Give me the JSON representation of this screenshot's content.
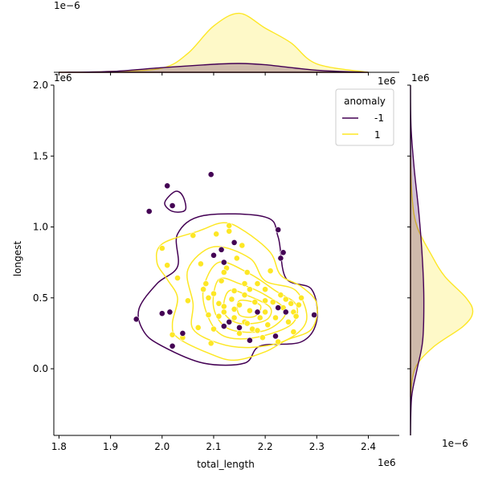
{
  "chart_data": {
    "type": "scatter",
    "subtype": "jointplot with kde contours and marginal kde",
    "xlabel": "total_length",
    "ylabel": "longest",
    "x_offset_label": "1e6",
    "y_offset_label": "1e6",
    "xlim": [
      1.79,
      2.46
    ],
    "ylim": [
      -0.47,
      2.0
    ],
    "x_ticks": [
      1.8,
      1.9,
      2.0,
      2.1,
      2.2,
      2.3,
      2.4
    ],
    "y_ticks": [
      0.0,
      0.5,
      1.0,
      1.5,
      2.0
    ],
    "x_tick_labels": [
      "1.8",
      "1.9",
      "2.0",
      "2.1",
      "2.2",
      "2.3",
      "2.4"
    ],
    "y_tick_labels": [
      "0.0",
      "0.5",
      "1.0",
      "1.5",
      "2.0"
    ],
    "top_marginal_offset_label": "1e−6",
    "top_marginal_right_label": "1e6",
    "right_marginal_top_label": "1e6",
    "right_marginal_offset_label": "1e−6",
    "grid": false,
    "legend": {
      "title": "anomaly",
      "placement": "upper right"
    },
    "series": [
      {
        "name": "-1",
        "color": "#440154",
        "points": [
          [
            1.95,
            0.35
          ],
          [
            1.975,
            1.11
          ],
          [
            2.0,
            0.39
          ],
          [
            2.02,
            1.15
          ],
          [
            2.01,
            1.29
          ],
          [
            2.015,
            0.4
          ],
          [
            2.02,
            0.16
          ],
          [
            2.04,
            0.25
          ],
          [
            2.095,
            1.37
          ],
          [
            2.1,
            0.8
          ],
          [
            2.115,
            0.84
          ],
          [
            2.12,
            0.75
          ],
          [
            2.13,
            0.33
          ],
          [
            2.14,
            0.89
          ],
          [
            2.15,
            0.29
          ],
          [
            2.17,
            0.2
          ],
          [
            2.185,
            0.4
          ],
          [
            2.22,
            0.23
          ],
          [
            2.225,
            0.98
          ],
          [
            2.225,
            0.43
          ],
          [
            2.23,
            0.78
          ],
          [
            2.235,
            0.82
          ],
          [
            2.24,
            0.4
          ],
          [
            2.295,
            0.38
          ],
          [
            2.12,
            0.3
          ]
        ]
      },
      {
        "name": "1",
        "color": "#fde725",
        "points": [
          [
            2.0,
            0.85
          ],
          [
            2.01,
            0.73
          ],
          [
            2.02,
            0.24
          ],
          [
            2.03,
            0.64
          ],
          [
            2.04,
            0.22
          ],
          [
            2.05,
            0.48
          ],
          [
            2.06,
            0.94
          ],
          [
            2.07,
            0.29
          ],
          [
            2.075,
            0.74
          ],
          [
            2.08,
            0.56
          ],
          [
            2.085,
            0.6
          ],
          [
            2.09,
            0.38
          ],
          [
            2.095,
            0.18
          ],
          [
            2.1,
            0.53
          ],
          [
            2.1,
            0.28
          ],
          [
            2.105,
            0.95
          ],
          [
            2.11,
            0.46
          ],
          [
            2.115,
            0.62
          ],
          [
            2.12,
            0.4
          ],
          [
            2.125,
            0.71
          ],
          [
            2.13,
            0.97
          ],
          [
            2.13,
            1.01
          ],
          [
            2.135,
            0.49
          ],
          [
            2.14,
            0.55
          ],
          [
            2.14,
            0.36
          ],
          [
            2.145,
            0.78
          ],
          [
            2.15,
            0.45
          ],
          [
            2.15,
            0.25
          ],
          [
            2.155,
            0.87
          ],
          [
            2.16,
            0.52
          ],
          [
            2.16,
            0.33
          ],
          [
            2.165,
            0.68
          ],
          [
            2.17,
            0.41
          ],
          [
            2.175,
            0.28
          ],
          [
            2.18,
            0.47
          ],
          [
            2.185,
            0.6
          ],
          [
            2.19,
            0.36
          ],
          [
            2.195,
            0.22
          ],
          [
            2.2,
            0.56
          ],
          [
            2.2,
            0.4
          ],
          [
            2.205,
            0.31
          ],
          [
            2.21,
            0.69
          ],
          [
            2.215,
            0.47
          ],
          [
            2.22,
            0.36
          ],
          [
            2.225,
            0.19
          ],
          [
            2.23,
            0.52
          ],
          [
            2.235,
            0.43
          ],
          [
            2.24,
            0.49
          ],
          [
            2.245,
            0.33
          ],
          [
            2.25,
            0.46
          ],
          [
            2.255,
            0.4
          ],
          [
            2.26,
            0.37
          ],
          [
            2.255,
            0.26
          ],
          [
            2.265,
            0.45
          ],
          [
            2.27,
            0.5
          ],
          [
            2.09,
            0.5
          ],
          [
            2.11,
            0.37
          ],
          [
            2.12,
            0.44
          ],
          [
            2.17,
            0.56
          ],
          [
            2.14,
            0.42
          ],
          [
            2.165,
            0.32
          ],
          [
            2.185,
            0.27
          ],
          [
            2.12,
            0.68
          ],
          [
            2.16,
            0.6
          ],
          [
            2.2,
            0.48
          ]
        ]
      }
    ],
    "kde_contours": [
      {
        "series": "-1",
        "levels": [
          [
            [
              2.2,
              1.07
            ],
            [
              2.08,
              1.08
            ],
            [
              2.03,
              0.95
            ],
            [
              2.03,
              0.72
            ],
            [
              1.99,
              0.6
            ],
            [
              1.955,
              0.42
            ],
            [
              1.965,
              0.26
            ],
            [
              2.0,
              0.16
            ],
            [
              2.08,
              0.04
            ],
            [
              2.16,
              0.04
            ],
            [
              2.19,
              0.16
            ],
            [
              2.27,
              0.19
            ],
            [
              2.3,
              0.34
            ],
            [
              2.29,
              0.56
            ],
            [
              2.24,
              0.64
            ],
            [
              2.225,
              0.93
            ],
            [
              2.2,
              1.07
            ]
          ],
          [
            [
              2.025,
              1.25
            ],
            [
              2.04,
              1.22
            ],
            [
              2.045,
              1.12
            ],
            [
              2.02,
              1.11
            ],
            [
              2.005,
              1.17
            ],
            [
              2.025,
              1.25
            ]
          ]
        ]
      },
      {
        "series": "1",
        "levels": [
          [
            [
              2.12,
              1.03
            ],
            [
              2.07,
              0.97
            ],
            [
              2.0,
              0.88
            ],
            [
              1.99,
              0.75
            ],
            [
              2.01,
              0.63
            ],
            [
              2.03,
              0.5
            ],
            [
              2.02,
              0.32
            ],
            [
              2.03,
              0.22
            ],
            [
              2.09,
              0.11
            ],
            [
              2.14,
              0.06
            ],
            [
              2.2,
              0.12
            ],
            [
              2.24,
              0.2
            ],
            [
              2.29,
              0.28
            ],
            [
              2.3,
              0.46
            ],
            [
              2.27,
              0.58
            ],
            [
              2.23,
              0.66
            ],
            [
              2.21,
              0.82
            ],
            [
              2.16,
              0.97
            ],
            [
              2.12,
              1.03
            ]
          ],
          [
            [
              2.1,
              0.86
            ],
            [
              2.05,
              0.7
            ],
            [
              2.06,
              0.46
            ],
            [
              2.06,
              0.28
            ],
            [
              2.11,
              0.18
            ],
            [
              2.17,
              0.15
            ],
            [
              2.24,
              0.2
            ],
            [
              2.28,
              0.34
            ],
            [
              2.26,
              0.55
            ],
            [
              2.2,
              0.62
            ],
            [
              2.17,
              0.78
            ],
            [
              2.1,
              0.86
            ]
          ],
          [
            [
              2.11,
              0.75
            ],
            [
              2.08,
              0.56
            ],
            [
              2.09,
              0.36
            ],
            [
              2.12,
              0.23
            ],
            [
              2.18,
              0.22
            ],
            [
              2.25,
              0.31
            ],
            [
              2.26,
              0.45
            ],
            [
              2.22,
              0.55
            ],
            [
              2.17,
              0.67
            ],
            [
              2.11,
              0.75
            ]
          ],
          [
            [
              2.11,
              0.63
            ],
            [
              2.1,
              0.43
            ],
            [
              2.13,
              0.28
            ],
            [
              2.2,
              0.27
            ],
            [
              2.24,
              0.4
            ],
            [
              2.2,
              0.52
            ],
            [
              2.15,
              0.6
            ],
            [
              2.11,
              0.63
            ]
          ],
          [
            [
              2.13,
              0.55
            ],
            [
              2.12,
              0.4
            ],
            [
              2.15,
              0.32
            ],
            [
              2.2,
              0.34
            ],
            [
              2.21,
              0.43
            ],
            [
              2.17,
              0.51
            ],
            [
              2.13,
              0.55
            ]
          ],
          [
            [
              2.15,
              0.48
            ],
            [
              2.15,
              0.38
            ],
            [
              2.18,
              0.37
            ],
            [
              2.19,
              0.45
            ],
            [
              2.15,
              0.48
            ]
          ]
        ]
      }
    ],
    "marginal_x": {
      "series": [
        {
          "name": "-1",
          "x": [
            1.8,
            1.9,
            2.0,
            2.1,
            2.15,
            2.2,
            2.3,
            2.4
          ],
          "density": [
            0.0,
            0.2,
            1.1,
            1.9,
            2.1,
            1.8,
            0.5,
            0.0
          ]
        },
        {
          "name": "1",
          "x": [
            1.8,
            1.9,
            2.0,
            2.05,
            2.1,
            2.15,
            2.2,
            2.25,
            2.3,
            2.4
          ],
          "density": [
            0.0,
            0.2,
            1.0,
            4.5,
            11.0,
            14.0,
            10.5,
            7.0,
            2.0,
            0.0
          ]
        }
      ],
      "ymax": 14.5
    },
    "marginal_y": {
      "series": [
        {
          "name": "-1",
          "y": [
            -0.47,
            -0.2,
            0.0,
            0.2,
            0.5,
            0.8,
            1.1,
            1.4,
            1.7,
            2.0
          ],
          "density": [
            0.0,
            0.02,
            0.12,
            0.22,
            0.24,
            0.21,
            0.15,
            0.07,
            0.01,
            0.0
          ]
        },
        {
          "name": "1",
          "y": [
            -0.2,
            0.0,
            0.15,
            0.3,
            0.4,
            0.5,
            0.65,
            0.8,
            1.0,
            1.2,
            1.5
          ],
          "density": [
            0.0,
            0.08,
            0.4,
            0.95,
            1.12,
            1.0,
            0.62,
            0.38,
            0.12,
            0.03,
            0.0
          ]
        }
      ],
      "xmax": 1.2
    }
  }
}
